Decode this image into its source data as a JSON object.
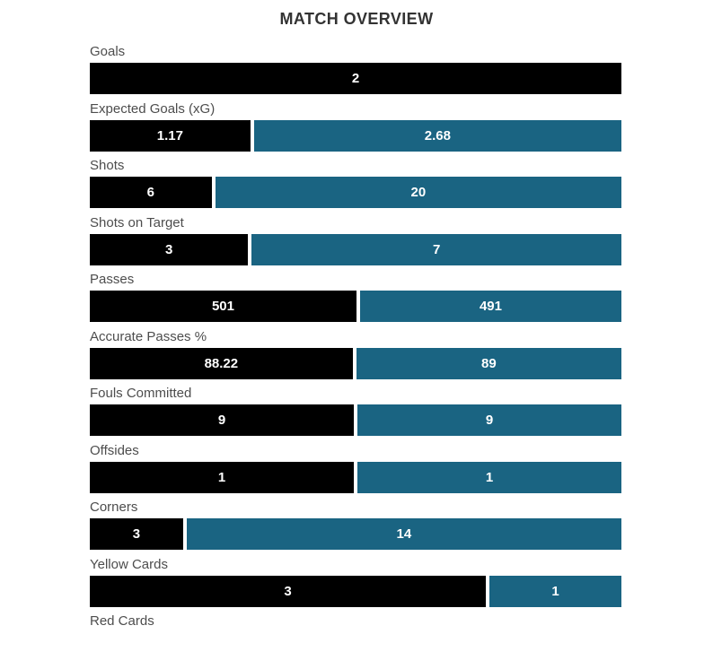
{
  "colors": {
    "home_bar": "#000000",
    "away_bar": "#1A6482",
    "label_text": "#4d4d4d",
    "title_text": "#333333",
    "value_text": "#ffffff",
    "background": "#ffffff"
  },
  "chart_data": {
    "type": "bar",
    "orientation": "horizontal",
    "stacked": true,
    "title": "MATCH OVERVIEW",
    "legend": "none",
    "value_labels": "inside-center",
    "grid": "off",
    "categories": [
      "Goals",
      "Expected Goals (xG)",
      "Shots",
      "Shots on Target",
      "Passes",
      "Accurate Passes %",
      "Fouls Committed",
      "Offsides",
      "Corners",
      "Yellow Cards",
      "Red Cards"
    ],
    "series": [
      {
        "name": "home",
        "color": "#000000",
        "values": [
          2,
          1.17,
          6,
          3,
          501,
          88.22,
          9,
          1,
          3,
          3,
          0
        ],
        "labels": [
          "2",
          "1.17",
          "6",
          "3",
          "501",
          "88.22",
          "9",
          "1",
          "3",
          "3",
          ""
        ]
      },
      {
        "name": "away",
        "color": "#1A6482",
        "values": [
          0,
          2.68,
          20,
          7,
          491,
          89,
          9,
          1,
          14,
          1,
          0
        ],
        "labels": [
          "",
          "2.68",
          "20",
          "7",
          "491",
          "89",
          "9",
          "1",
          "14",
          "1",
          ""
        ]
      }
    ]
  }
}
